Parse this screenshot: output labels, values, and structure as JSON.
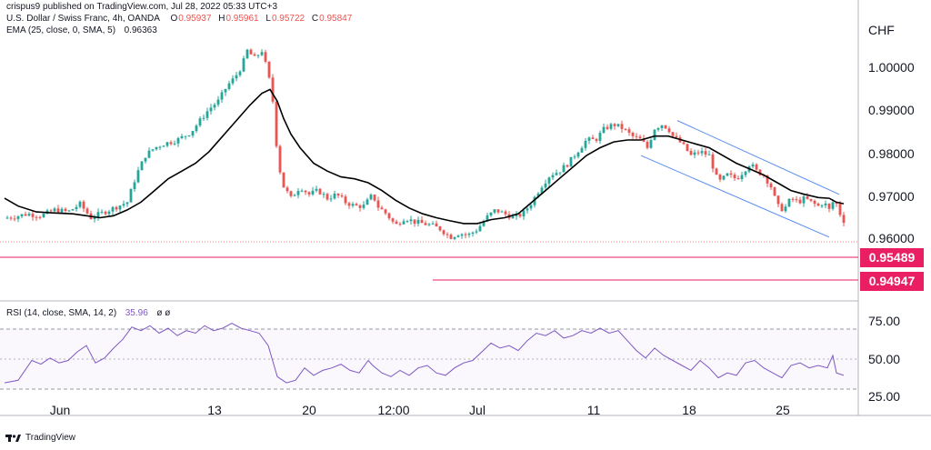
{
  "header": {
    "published": "crispus9 published on TradingView.com, Jul 28, 2022 05:33 UTC+3",
    "symbol": "U.S. Dollar / Swiss Franc, 4h, OANDA",
    "ohlc": [
      {
        "label": "O",
        "value": "0.95937"
      },
      {
        "label": "H",
        "value": "0.95961"
      },
      {
        "label": "L",
        "value": "0.95722"
      },
      {
        "label": "C",
        "value": "0.95847"
      }
    ],
    "ema_label": "EMA (25, close, 0, SMA, 5)",
    "ema_value": "0.96363",
    "rsi_label": "RSI (14, close, SMA, 14, 2)",
    "rsi_value": "35.96",
    "rsi_suffix": "ø ø"
  },
  "footer": {
    "brand": "TradingView"
  },
  "colors": {
    "up": "#26a69a",
    "down": "#ef5350",
    "ema": "#000000",
    "channel": "#5b8def",
    "support": "#e91e63",
    "rsi": "#7e57c2",
    "grid": "#d1d4dc"
  },
  "chart_data": [
    {
      "type": "candlestick",
      "title": "U.S. Dollar / Swiss Franc, 4h, OANDA",
      "ylabel": "CHF",
      "ylim": [
        0.9435,
        1.0055
      ],
      "y_ticks": [
        "1.00000",
        "0.99000",
        "0.98000",
        "0.97000",
        "0.96000"
      ],
      "x_ticks": [
        "Jun",
        "13",
        "20",
        "12:00",
        "Jul",
        "11",
        "18",
        "25"
      ],
      "support_levels": [
        "0.95489",
        "0.94947"
      ],
      "last_price": 0.95847,
      "series": [
        {
          "name": "USDCHF 4h",
          "path": [
            [
              0,
              0.9598
            ],
            [
              15,
              0.9602
            ],
            [
              30,
              0.961
            ],
            [
              45,
              0.9605
            ],
            [
              60,
              0.962
            ],
            [
              75,
              0.9615
            ],
            [
              88,
              0.9635
            ],
            [
              100,
              0.96
            ],
            [
              115,
              0.9615
            ],
            [
              125,
              0.9625
            ],
            [
              140,
              0.964
            ],
            [
              150,
              0.971
            ],
            [
              160,
              0.976
            ],
            [
              170,
              0.978
            ],
            [
              180,
              0.979
            ],
            [
              195,
              0.98
            ],
            [
              210,
              0.982
            ],
            [
              220,
              0.985
            ],
            [
              230,
              0.988
            ],
            [
              240,
              0.99
            ],
            [
              250,
              0.994
            ],
            [
              258,
              0.996
            ],
            [
              266,
              0.999
            ],
            [
              272,
              1.003
            ],
            [
              280,
              1.001
            ],
            [
              288,
              1.003
            ],
            [
              295,
              0.997
            ],
            [
              300,
              0.99
            ],
            [
              304,
              0.979
            ],
            [
              308,
              0.972
            ],
            [
              312,
              0.968
            ],
            [
              320,
              0.965
            ],
            [
              330,
              0.968
            ],
            [
              340,
              0.966
            ],
            [
              350,
              0.967
            ],
            [
              360,
              0.965
            ],
            [
              370,
              0.966
            ],
            [
              380,
              0.964
            ],
            [
              390,
              0.963
            ],
            [
              400,
              0.963
            ],
            [
              410,
              0.966
            ],
            [
              415,
              0.963
            ],
            [
              425,
              0.961
            ],
            [
              435,
              0.958
            ],
            [
              445,
              0.96
            ],
            [
              455,
              0.959
            ],
            [
              465,
              0.9585
            ],
            [
              475,
              0.958
            ],
            [
              485,
              0.957
            ],
            [
              495,
              0.955
            ],
            [
              505,
              0.956
            ],
            [
              515,
              0.9555
            ],
            [
              525,
              0.957
            ],
            [
              535,
              0.96
            ],
            [
              545,
              0.962
            ],
            [
              555,
              0.961
            ],
            [
              565,
              0.96
            ],
            [
              575,
              0.961
            ],
            [
              585,
              0.964
            ],
            [
              595,
              0.968
            ],
            [
              605,
              0.971
            ],
            [
              615,
              0.972
            ],
            [
              625,
              0.974
            ],
            [
              635,
              0.977
            ],
            [
              645,
              0.98
            ],
            [
              655,
              0.98
            ],
            [
              665,
              0.983
            ],
            [
              675,
              0.984
            ],
            [
              685,
              0.983
            ],
            [
              695,
              0.981
            ],
            [
              705,
              0.98
            ],
            [
              712,
              0.978
            ],
            [
              720,
              0.983
            ],
            [
              728,
              0.984
            ],
            [
              735,
              0.983
            ],
            [
              740,
              0.981
            ],
            [
              745,
              0.98
            ],
            [
              750,
              0.979
            ],
            [
              760,
              0.976
            ],
            [
              770,
              0.977
            ],
            [
              780,
              0.976
            ],
            [
              790,
              0.969
            ],
            [
              800,
              0.971
            ],
            [
              810,
              0.97
            ],
            [
              818,
              0.972
            ],
            [
              825,
              0.974
            ],
            [
              832,
              0.972
            ],
            [
              840,
              0.971
            ],
            [
              848,
              0.968
            ],
            [
              855,
              0.963
            ],
            [
              862,
              0.962
            ],
            [
              870,
              0.965
            ],
            [
              878,
              0.964
            ],
            [
              885,
              0.965
            ],
            [
              892,
              0.964
            ],
            [
              900,
              0.963
            ],
            [
              906,
              0.964
            ],
            [
              912,
              0.962
            ],
            [
              918,
              0.965
            ],
            [
              922,
              0.962
            ],
            [
              926,
              0.96
            ],
            [
              930,
              0.9585
            ]
          ]
        },
        {
          "name": "EMA (25, close, 0, SMA, 5)",
          "path": [
            [
              5,
              0.965
            ],
            [
              20,
              0.963
            ],
            [
              40,
              0.9615
            ],
            [
              60,
              0.9612
            ],
            [
              80,
              0.961
            ],
            [
              95,
              0.9605
            ],
            [
              110,
              0.96
            ],
            [
              125,
              0.9605
            ],
            [
              140,
              0.962
            ],
            [
              155,
              0.964
            ],
            [
              170,
              0.967
            ],
            [
              185,
              0.97
            ],
            [
              200,
              0.972
            ],
            [
              215,
              0.974
            ],
            [
              230,
              0.977
            ],
            [
              245,
              0.981
            ],
            [
              260,
              0.985
            ],
            [
              275,
              0.989
            ],
            [
              288,
              0.992
            ],
            [
              297,
              0.993
            ],
            [
              305,
              0.99
            ],
            [
              312,
              0.9855
            ],
            [
              320,
              0.9815
            ],
            [
              330,
              0.978
            ],
            [
              345,
              0.974
            ],
            [
              360,
              0.972
            ],
            [
              375,
              0.9705
            ],
            [
              390,
              0.97
            ],
            [
              405,
              0.969
            ],
            [
              420,
              0.967
            ],
            [
              435,
              0.9645
            ],
            [
              450,
              0.9625
            ],
            [
              465,
              0.961
            ],
            [
              480,
              0.96
            ],
            [
              495,
              0.9592
            ],
            [
              510,
              0.9585
            ],
            [
              525,
              0.9585
            ],
            [
              540,
              0.9595
            ],
            [
              555,
              0.96
            ],
            [
              570,
              0.961
            ],
            [
              585,
              0.964
            ],
            [
              600,
              0.967
            ],
            [
              615,
              0.97
            ],
            [
              630,
              0.973
            ],
            [
              645,
              0.976
            ],
            [
              660,
              0.978
            ],
            [
              675,
              0.9795
            ],
            [
              690,
              0.98
            ],
            [
              705,
              0.98
            ],
            [
              720,
              0.981
            ],
            [
              735,
              0.981
            ],
            [
              750,
              0.98
            ],
            [
              765,
              0.979
            ],
            [
              780,
              0.978
            ],
            [
              795,
              0.976
            ],
            [
              810,
              0.974
            ],
            [
              825,
              0.9725
            ],
            [
              840,
              0.971
            ],
            [
              855,
              0.969
            ],
            [
              870,
              0.967
            ],
            [
              885,
              0.966
            ],
            [
              900,
              0.9652
            ],
            [
              912,
              0.965
            ],
            [
              920,
              0.964
            ],
            [
              928,
              0.9636
            ]
          ]
        },
        {
          "name": "channel-upper",
          "path": [
            [
              745,
              0.985
            ],
            [
              923,
              0.966
            ]
          ]
        },
        {
          "name": "channel-lower",
          "path": [
            [
              705,
              0.976
            ],
            [
              912,
              0.955
            ]
          ]
        }
      ]
    },
    {
      "type": "line",
      "title": "RSI (14, close, SMA, 14, 2)",
      "ylim": [
        22,
        85
      ],
      "y_ticks": [
        "75.00",
        "50.00",
        "25.00"
      ],
      "bands": [
        70,
        30
      ],
      "series": [
        {
          "name": "RSI",
          "path": [
            [
              5,
              30
            ],
            [
              20,
              32
            ],
            [
              35,
              48
            ],
            [
              45,
              45
            ],
            [
              55,
              50
            ],
            [
              65,
              46
            ],
            [
              75,
              48
            ],
            [
              85,
              55
            ],
            [
              95,
              60
            ],
            [
              105,
              46
            ],
            [
              115,
              50
            ],
            [
              125,
              58
            ],
            [
              135,
              65
            ],
            [
              145,
              75
            ],
            [
              155,
              72
            ],
            [
              165,
              76
            ],
            [
              175,
              70
            ],
            [
              185,
              74
            ],
            [
              195,
              68
            ],
            [
              205,
              72
            ],
            [
              215,
              70
            ],
            [
              225,
              76
            ],
            [
              235,
              72
            ],
            [
              245,
              74
            ],
            [
              255,
              78
            ],
            [
              265,
              74
            ],
            [
              275,
              72
            ],
            [
              285,
              70
            ],
            [
              295,
              60
            ],
            [
              305,
              35
            ],
            [
              315,
              30
            ],
            [
              325,
              32
            ],
            [
              335,
              42
            ],
            [
              345,
              36
            ],
            [
              355,
              40
            ],
            [
              365,
              42
            ],
            [
              375,
              45
            ],
            [
              385,
              40
            ],
            [
              395,
              38
            ],
            [
              405,
              48
            ],
            [
              410,
              44
            ],
            [
              420,
              38
            ],
            [
              430,
              35
            ],
            [
              440,
              40
            ],
            [
              450,
              36
            ],
            [
              460,
              42
            ],
            [
              470,
              44
            ],
            [
              480,
              38
            ],
            [
              490,
              36
            ],
            [
              500,
              42
            ],
            [
              510,
              46
            ],
            [
              520,
              48
            ],
            [
              530,
              55
            ],
            [
              540,
              62
            ],
            [
              550,
              58
            ],
            [
              560,
              60
            ],
            [
              570,
              56
            ],
            [
              580,
              64
            ],
            [
              590,
              70
            ],
            [
              600,
              68
            ],
            [
              610,
              72
            ],
            [
              620,
              66
            ],
            [
              630,
              68
            ],
            [
              640,
              72
            ],
            [
              650,
              70
            ],
            [
              660,
              74
            ],
            [
              670,
              70
            ],
            [
              680,
              72
            ],
            [
              690,
              64
            ],
            [
              700,
              56
            ],
            [
              710,
              50
            ],
            [
              720,
              58
            ],
            [
              730,
              52
            ],
            [
              740,
              48
            ],
            [
              750,
              44
            ],
            [
              760,
              40
            ],
            [
              770,
              48
            ],
            [
              780,
              42
            ],
            [
              790,
              34
            ],
            [
              800,
              38
            ],
            [
              810,
              36
            ],
            [
              820,
              46
            ],
            [
              830,
              48
            ],
            [
              840,
              42
            ],
            [
              850,
              38
            ],
            [
              860,
              34
            ],
            [
              870,
              44
            ],
            [
              880,
              46
            ],
            [
              890,
              42
            ],
            [
              900,
              44
            ],
            [
              910,
              42
            ],
            [
              916,
              52
            ],
            [
              920,
              38
            ],
            [
              928,
              36
            ]
          ]
        }
      ]
    }
  ]
}
